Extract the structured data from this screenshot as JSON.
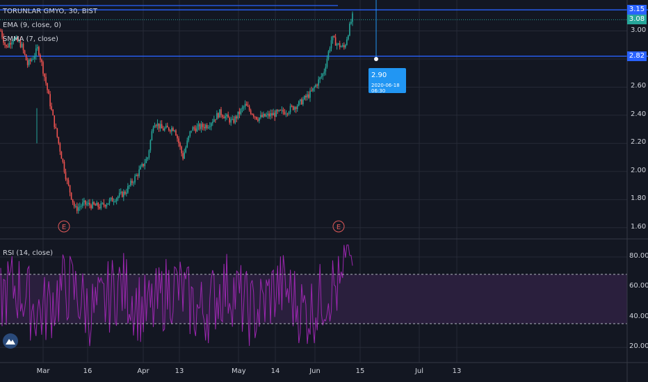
{
  "window": {
    "symbol_title": "TORUNLAR GMYO, 30, BIST"
  },
  "indicators": {
    "ema": "EMA (9, close, 0)",
    "smma": "SMMA (7, close)",
    "rsi": "RSI (14, close)"
  },
  "price_axis": {
    "ticks": [
      "3.00",
      "2.80",
      "2.60",
      "2.40",
      "2.20",
      "2.00",
      "1.80",
      "1.60"
    ],
    "tick_values": [
      3.0,
      2.8,
      2.6,
      2.4,
      2.2,
      2.0,
      1.8,
      1.6
    ],
    "badges": [
      {
        "value": 3.15,
        "label": "3.15",
        "color": "#2962ff"
      },
      {
        "value": 3.08,
        "label": "3.08",
        "color": "#26a69a"
      },
      {
        "value": 2.82,
        "label": "2.82",
        "color": "#2962ff"
      }
    ],
    "range": [
      1.52,
      3.22
    ]
  },
  "rsi_axis": {
    "ticks": [
      "80.00",
      "60.00",
      "40.00",
      "20.00"
    ],
    "tick_values": [
      80,
      60,
      40,
      20
    ],
    "upper_band": 70,
    "lower_band": 30,
    "range": [
      10,
      92
    ]
  },
  "time_axis": {
    "labels": [
      "Mar",
      "16",
      "Apr",
      "13",
      "May",
      "14",
      "Jun",
      "15",
      "Jul",
      "13"
    ]
  },
  "horizontal_lines": [
    {
      "value": 3.15,
      "color": "#2962ff"
    },
    {
      "value": 2.82,
      "color": "#2962ff"
    }
  ],
  "tooltip": {
    "price": "2.90",
    "datetime": "2020-06-18 06:30",
    "color": "#2196f3"
  },
  "earnings_markers": [
    {
      "label": "E",
      "color": "#e05a5a"
    },
    {
      "label": "E",
      "color": "#e05a5a"
    }
  ],
  "colors": {
    "background": "#131722",
    "grid": "#262a36",
    "up": "#26a69a",
    "down": "#ef5350",
    "rsi_line": "#9c27b0",
    "rsi_band_fill": "#2a1f3d"
  },
  "chart_data": {
    "type": "candlestick",
    "path_keypoints": [
      {
        "x": 0.0,
        "y": 3.0
      },
      {
        "x": 0.013,
        "y": 2.88
      },
      {
        "x": 0.03,
        "y": 2.95
      },
      {
        "x": 0.05,
        "y": 2.9
      },
      {
        "x": 0.065,
        "y": 2.76
      },
      {
        "x": 0.08,
        "y": 2.82
      },
      {
        "x": 0.09,
        "y": 2.88
      },
      {
        "x": 0.098,
        "y": 2.78
      },
      {
        "x": 0.11,
        "y": 2.62
      },
      {
        "x": 0.125,
        "y": 2.4
      },
      {
        "x": 0.14,
        "y": 2.2
      },
      {
        "x": 0.16,
        "y": 1.93
      },
      {
        "x": 0.18,
        "y": 1.73
      },
      {
        "x": 0.2,
        "y": 1.77
      },
      {
        "x": 0.24,
        "y": 1.75
      },
      {
        "x": 0.27,
        "y": 1.8
      },
      {
        "x": 0.3,
        "y": 1.85
      },
      {
        "x": 0.33,
        "y": 1.98
      },
      {
        "x": 0.355,
        "y": 2.1
      },
      {
        "x": 0.37,
        "y": 2.36
      },
      {
        "x": 0.39,
        "y": 2.3
      },
      {
        "x": 0.42,
        "y": 2.31
      },
      {
        "x": 0.44,
        "y": 2.1
      },
      {
        "x": 0.46,
        "y": 2.3
      },
      {
        "x": 0.5,
        "y": 2.33
      },
      {
        "x": 0.53,
        "y": 2.42
      },
      {
        "x": 0.56,
        "y": 2.35
      },
      {
        "x": 0.59,
        "y": 2.47
      },
      {
        "x": 0.62,
        "y": 2.38
      },
      {
        "x": 0.65,
        "y": 2.4
      },
      {
        "x": 0.69,
        "y": 2.43
      },
      {
        "x": 0.72,
        "y": 2.48
      },
      {
        "x": 0.75,
        "y": 2.56
      },
      {
        "x": 0.78,
        "y": 2.7
      },
      {
        "x": 0.8,
        "y": 2.95
      },
      {
        "x": 0.815,
        "y": 2.9
      },
      {
        "x": 0.83,
        "y": 2.88
      },
      {
        "x": 0.845,
        "y": 3.05
      },
      {
        "x": 0.85,
        "y": 3.1
      }
    ],
    "candle_count": 250
  }
}
